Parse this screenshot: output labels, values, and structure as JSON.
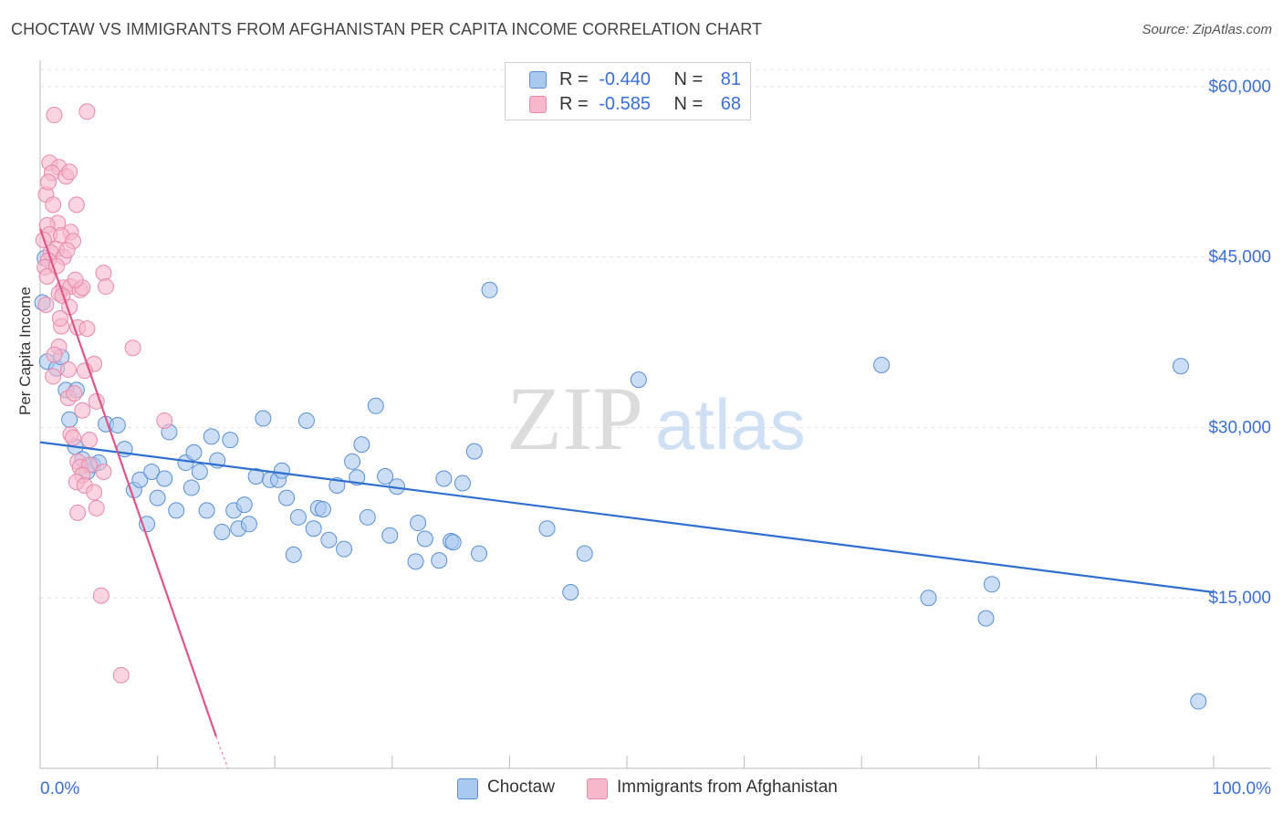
{
  "header": {
    "title": "CHOCTAW VS IMMIGRANTS FROM AFGHANISTAN PER CAPITA INCOME CORRELATION CHART",
    "source": "Source: ZipAtlas.com"
  },
  "legend_top": {
    "rows": [
      {
        "r_label": "R =",
        "r_value": "-0.440",
        "n_label": "N =",
        "n_value": "81"
      },
      {
        "r_label": "R =",
        "r_value": "-0.585",
        "n_label": "N =",
        "n_value": "68"
      }
    ]
  },
  "legend_bottom": {
    "items": [
      "Choctaw",
      "Immigrants from Afghanistan"
    ]
  },
  "watermark": {
    "zip": "ZIP",
    "atlas": "atlas"
  },
  "colors": {
    "choctaw_fill": "#a9c8f0",
    "choctaw_stroke": "#5a8fd6",
    "choctaw_line": "#2f6fd0",
    "afghan_fill": "#f7b8cb",
    "afghan_stroke": "#e88aa8",
    "afghan_line": "#e05588",
    "axis_label": "#3a6fd8",
    "grid": "#e3e3e3"
  },
  "chart_data": {
    "type": "scatter",
    "title": "CHOCTAW VS IMMIGRANTS FROM AFGHANISTAN PER CAPITA INCOME CORRELATION CHART",
    "xlabel": "",
    "ylabel": "Per Capita Income",
    "xlim": [
      0,
      100
    ],
    "ylim": [
      0,
      62000
    ],
    "x_tick_labels": [
      "0.0%",
      "100.0%"
    ],
    "y_ticks": [
      15000,
      30000,
      45000,
      60000
    ],
    "y_tick_labels": [
      "$15,000",
      "$30,000",
      "$45,000",
      "$60,000"
    ],
    "grid": true,
    "legend_position": "top-center",
    "series": [
      {
        "name": "Choctaw",
        "R": -0.44,
        "N": 81,
        "trend": {
          "x": [
            0,
            100
          ],
          "y": [
            28700,
            15500
          ]
        },
        "points": [
          [
            0.2,
            41000
          ],
          [
            0.6,
            35800
          ],
          [
            1.4,
            35200
          ],
          [
            1.8,
            36200
          ],
          [
            2.2,
            33300
          ],
          [
            2.5,
            30700
          ],
          [
            3.0,
            28300
          ],
          [
            3.1,
            33300
          ],
          [
            3.6,
            27200
          ],
          [
            4.0,
            26100
          ],
          [
            4.5,
            26700
          ],
          [
            5.0,
            26900
          ],
          [
            5.6,
            30300
          ],
          [
            6.6,
            30200
          ],
          [
            7.2,
            28100
          ],
          [
            8.0,
            24500
          ],
          [
            8.5,
            25400
          ],
          [
            9.1,
            21500
          ],
          [
            9.5,
            26100
          ],
          [
            10.0,
            23800
          ],
          [
            10.6,
            25500
          ],
          [
            11.0,
            29600
          ],
          [
            11.6,
            22700
          ],
          [
            12.4,
            26900
          ],
          [
            12.9,
            24700
          ],
          [
            13.1,
            27800
          ],
          [
            13.6,
            26100
          ],
          [
            14.2,
            22700
          ],
          [
            14.6,
            29200
          ],
          [
            15.1,
            27100
          ],
          [
            15.5,
            20800
          ],
          [
            16.2,
            28900
          ],
          [
            16.5,
            22700
          ],
          [
            16.9,
            21100
          ],
          [
            17.4,
            23200
          ],
          [
            17.8,
            21500
          ],
          [
            18.4,
            25700
          ],
          [
            19.0,
            30800
          ],
          [
            19.6,
            25400
          ],
          [
            20.3,
            25400
          ],
          [
            20.6,
            26200
          ],
          [
            21.0,
            23800
          ],
          [
            21.6,
            18800
          ],
          [
            22.0,
            22100
          ],
          [
            22.7,
            30600
          ],
          [
            23.3,
            21100
          ],
          [
            23.7,
            22900
          ],
          [
            24.1,
            22800
          ],
          [
            24.6,
            20100
          ],
          [
            25.3,
            24900
          ],
          [
            25.9,
            19300
          ],
          [
            26.6,
            27000
          ],
          [
            27.0,
            25600
          ],
          [
            27.4,
            28500
          ],
          [
            27.9,
            22100
          ],
          [
            28.6,
            31900
          ],
          [
            29.4,
            25700
          ],
          [
            29.8,
            20500
          ],
          [
            30.4,
            24800
          ],
          [
            32.0,
            18200
          ],
          [
            32.2,
            21600
          ],
          [
            32.8,
            20200
          ],
          [
            34.0,
            18300
          ],
          [
            34.4,
            25500
          ],
          [
            35.0,
            20000
          ],
          [
            35.2,
            19900
          ],
          [
            36.0,
            25100
          ],
          [
            37.0,
            27900
          ],
          [
            37.4,
            18900
          ],
          [
            38.3,
            42100
          ],
          [
            43.2,
            21100
          ],
          [
            45.2,
            15500
          ],
          [
            46.4,
            18900
          ],
          [
            51.0,
            34200
          ],
          [
            71.7,
            35500
          ],
          [
            75.7,
            15000
          ],
          [
            80.6,
            13200
          ],
          [
            81.1,
            16200
          ],
          [
            97.2,
            35400
          ],
          [
            98.7,
            5900
          ],
          [
            0.4,
            44900
          ]
        ]
      },
      {
        "name": "Immigrants from Afghanistan",
        "R": -0.585,
        "N": 68,
        "trend": {
          "x": [
            0,
            15.0
          ],
          "y": [
            47500,
            2800
          ]
        },
        "trend_dashed_ext": {
          "x": [
            15.0,
            16.0
          ],
          "y": [
            2800,
            0
          ]
        },
        "points": [
          [
            1.2,
            57500
          ],
          [
            4.0,
            57800
          ],
          [
            0.8,
            53300
          ],
          [
            1.6,
            52900
          ],
          [
            1.0,
            52400
          ],
          [
            2.2,
            52100
          ],
          [
            2.5,
            52500
          ],
          [
            0.5,
            50500
          ],
          [
            0.7,
            51600
          ],
          [
            1.1,
            49600
          ],
          [
            3.1,
            49600
          ],
          [
            1.5,
            48000
          ],
          [
            0.6,
            47800
          ],
          [
            0.8,
            47000
          ],
          [
            2.6,
            47200
          ],
          [
            1.8,
            46900
          ],
          [
            0.3,
            46500
          ],
          [
            2.8,
            46400
          ],
          [
            1.4,
            45700
          ],
          [
            0.9,
            45400
          ],
          [
            2.0,
            45000
          ],
          [
            0.7,
            44700
          ],
          [
            0.4,
            44100
          ],
          [
            0.6,
            43300
          ],
          [
            5.4,
            43600
          ],
          [
            2.0,
            42300
          ],
          [
            2.6,
            42400
          ],
          [
            3.4,
            42100
          ],
          [
            3.6,
            42300
          ],
          [
            5.6,
            42400
          ],
          [
            1.6,
            41800
          ],
          [
            1.9,
            41600
          ],
          [
            2.5,
            40600
          ],
          [
            0.5,
            40800
          ],
          [
            1.8,
            38900
          ],
          [
            3.2,
            38800
          ],
          [
            4.0,
            38700
          ],
          [
            1.6,
            37100
          ],
          [
            7.9,
            37000
          ],
          [
            1.2,
            36400
          ],
          [
            4.6,
            35600
          ],
          [
            2.4,
            35100
          ],
          [
            3.8,
            35000
          ],
          [
            1.1,
            34500
          ],
          [
            2.4,
            32600
          ],
          [
            4.8,
            32300
          ],
          [
            3.6,
            31500
          ],
          [
            10.6,
            30600
          ],
          [
            2.6,
            29400
          ],
          [
            2.8,
            29100
          ],
          [
            4.2,
            28900
          ],
          [
            3.2,
            27000
          ],
          [
            3.4,
            26500
          ],
          [
            4.2,
            26700
          ],
          [
            3.6,
            25800
          ],
          [
            5.4,
            26100
          ],
          [
            3.1,
            25200
          ],
          [
            3.8,
            24900
          ],
          [
            4.6,
            24300
          ],
          [
            3.2,
            22500
          ],
          [
            4.8,
            22900
          ],
          [
            5.2,
            15200
          ],
          [
            6.9,
            8200
          ],
          [
            1.4,
            44200
          ],
          [
            2.3,
            45600
          ],
          [
            3.0,
            43000
          ],
          [
            1.7,
            39600
          ],
          [
            2.9,
            33000
          ]
        ]
      }
    ]
  }
}
